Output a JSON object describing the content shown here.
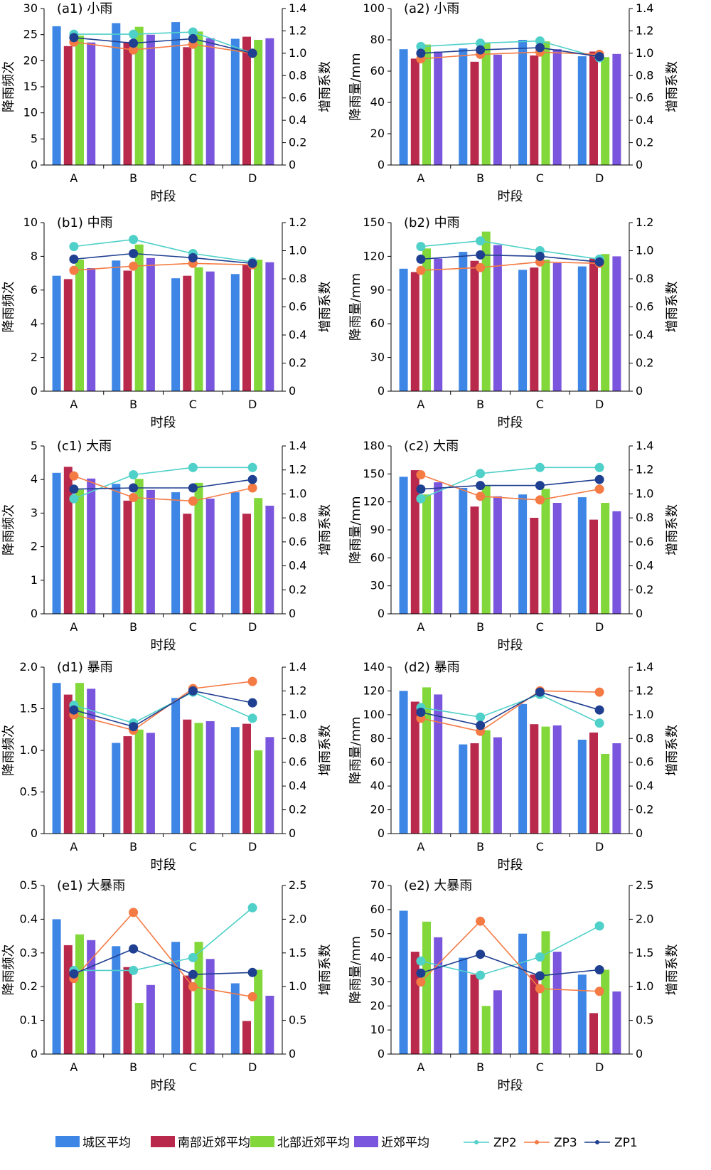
{
  "chart_data": [
    {
      "id": "a1",
      "type": "bar+line",
      "title": "(a1) 小雨",
      "xlabel": "时段",
      "ylabel": "降雨频次",
      "y2label": "增雨系数",
      "categories": [
        "A",
        "B",
        "C",
        "D"
      ],
      "ylim": [
        0,
        30
      ],
      "yticks": [
        "0",
        "5",
        "10",
        "15",
        "20",
        "25",
        "30"
      ],
      "y2lim": [
        0,
        1.4
      ],
      "y2ticks": [
        "0",
        "0.2",
        "0.4",
        "0.6",
        "0.8",
        "1.0",
        "1.2",
        "1.4"
      ],
      "series": [
        {
          "name": "城区平均",
          "values": [
            26.6,
            27.2,
            27.4,
            24.2
          ]
        },
        {
          "name": "南部近郊平均",
          "values": [
            22.8,
            23.6,
            22.6,
            24.6
          ]
        },
        {
          "name": "北部近郊平均",
          "values": [
            24.8,
            26.5,
            25.6,
            24.0
          ]
        },
        {
          "name": "近郊平均",
          "values": [
            23.5,
            25.0,
            24.3,
            24.3
          ]
        }
      ],
      "lines": [
        {
          "name": "ZP2",
          "values": [
            1.17,
            1.17,
            1.19,
            1.0
          ]
        },
        {
          "name": "ZP3",
          "values": [
            1.1,
            1.03,
            1.08,
            1.0
          ]
        },
        {
          "name": "ZP1",
          "values": [
            1.14,
            1.09,
            1.13,
            1.0
          ]
        }
      ]
    },
    {
      "id": "a2",
      "type": "bar+line",
      "title": "(a2) 小雨",
      "xlabel": "时段",
      "ylabel": "降雨量/mm",
      "y2label": "增雨系数",
      "categories": [
        "A",
        "B",
        "C",
        "D"
      ],
      "ylim": [
        0,
        100
      ],
      "yticks": [
        "0",
        "20",
        "40",
        "60",
        "80",
        "100"
      ],
      "y2lim": [
        0,
        1.4
      ],
      "y2ticks": [
        "0",
        "0.2",
        "0.4",
        "0.6",
        "0.8",
        "1.0",
        "1.2",
        "1.4"
      ],
      "series": [
        {
          "name": "城区平均",
          "values": [
            74,
            74.5,
            80,
            69.5
          ]
        },
        {
          "name": "南部近郊平均",
          "values": [
            68,
            66,
            70,
            72.5
          ]
        },
        {
          "name": "北部近郊平均",
          "values": [
            77,
            78,
            79,
            69
          ]
        },
        {
          "name": "近郊平均",
          "values": [
            72.5,
            70.5,
            74,
            71
          ]
        }
      ],
      "lines": [
        {
          "name": "ZP2",
          "values": [
            1.06,
            1.09,
            1.11,
            0.96
          ]
        },
        {
          "name": "ZP3",
          "values": [
            0.95,
            0.99,
            1.01,
            0.99
          ]
        },
        {
          "name": "ZP1",
          "values": [
            1.0,
            1.03,
            1.05,
            0.97
          ]
        }
      ]
    },
    {
      "id": "b1",
      "type": "bar+line",
      "title": "(b1) 中雨",
      "xlabel": "时段",
      "ylabel": "降雨频次",
      "y2label": "增雨系数",
      "categories": [
        "A",
        "B",
        "C",
        "D"
      ],
      "ylim": [
        0,
        10
      ],
      "yticks": [
        "0",
        "2",
        "4",
        "6",
        "8",
        "10"
      ],
      "y2lim": [
        0,
        1.2
      ],
      "y2ticks": [
        "0",
        "0.2",
        "0.4",
        "0.6",
        "0.8",
        "1.0",
        "1.2"
      ],
      "series": [
        {
          "name": "城区平均",
          "values": [
            6.85,
            7.75,
            6.7,
            6.95
          ]
        },
        {
          "name": "南部近郊平均",
          "values": [
            6.65,
            7.15,
            6.85,
            7.5
          ]
        },
        {
          "name": "北部近郊平均",
          "values": [
            7.8,
            8.7,
            7.35,
            7.8
          ]
        },
        {
          "name": "近郊平均",
          "values": [
            7.3,
            7.9,
            7.1,
            7.65
          ]
        }
      ],
      "lines": [
        {
          "name": "ZP2",
          "values": [
            1.03,
            1.08,
            0.98,
            0.92
          ]
        },
        {
          "name": "ZP3",
          "values": [
            0.86,
            0.89,
            0.91,
            0.9
          ]
        },
        {
          "name": "ZP1",
          "values": [
            0.94,
            0.98,
            0.95,
            0.91
          ]
        }
      ]
    },
    {
      "id": "b2",
      "type": "bar+line",
      "title": "(b2) 中雨",
      "xlabel": "时段",
      "ylabel": "降雨量/mm",
      "y2label": "增雨系数",
      "categories": [
        "A",
        "B",
        "C",
        "D"
      ],
      "ylim": [
        0,
        150
      ],
      "yticks": [
        "0",
        "30",
        "60",
        "90",
        "120",
        "150"
      ],
      "y2lim": [
        0,
        1.2
      ],
      "y2ticks": [
        "0",
        "0.2",
        "0.4",
        "0.6",
        "0.8",
        "1.0",
        "1.2"
      ],
      "series": [
        {
          "name": "城区平均",
          "values": [
            109,
            124,
            108,
            111
          ]
        },
        {
          "name": "南部近郊平均",
          "values": [
            106,
            116,
            110,
            118
          ]
        },
        {
          "name": "北部近郊平均",
          "values": [
            127,
            142,
            117,
            122
          ]
        },
        {
          "name": "近郊平均",
          "values": [
            118,
            130,
            114,
            120
          ]
        }
      ],
      "lines": [
        {
          "name": "ZP2",
          "values": [
            1.03,
            1.07,
            1.0,
            0.94
          ]
        },
        {
          "name": "ZP3",
          "values": [
            0.86,
            0.88,
            0.92,
            0.91
          ]
        },
        {
          "name": "ZP1",
          "values": [
            0.94,
            0.97,
            0.96,
            0.92
          ]
        }
      ]
    },
    {
      "id": "c1",
      "type": "bar+line",
      "title": "(c1) 大雨",
      "xlabel": "时段",
      "ylabel": "降雨频次",
      "y2label": "增雨系数",
      "categories": [
        "A",
        "B",
        "C",
        "D"
      ],
      "ylim": [
        0,
        5
      ],
      "yticks": [
        "0",
        "1",
        "2",
        "3",
        "4",
        "5"
      ],
      "y2lim": [
        0,
        1.4
      ],
      "y2ticks": [
        "0",
        "0.2",
        "0.4",
        "0.6",
        "0.8",
        "1.0",
        "1.2",
        "1.4"
      ],
      "series": [
        {
          "name": "城区平均",
          "values": [
            4.2,
            3.87,
            3.62,
            3.62
          ]
        },
        {
          "name": "南部近郊平均",
          "values": [
            4.38,
            3.37,
            2.98,
            2.98
          ]
        },
        {
          "name": "北部近郊平均",
          "values": [
            3.7,
            4.02,
            3.9,
            3.45
          ]
        },
        {
          "name": "近郊平均",
          "values": [
            4.03,
            3.69,
            3.43,
            3.22
          ]
        }
      ],
      "lines": [
        {
          "name": "ZP2",
          "values": [
            0.96,
            1.16,
            1.22,
            1.22
          ]
        },
        {
          "name": "ZP3",
          "values": [
            1.15,
            0.97,
            0.94,
            1.05
          ]
        },
        {
          "name": "ZP1",
          "values": [
            1.04,
            1.05,
            1.05,
            1.12
          ]
        }
      ]
    },
    {
      "id": "c2",
      "type": "bar+line",
      "title": "(c2) 大雨",
      "xlabel": "时段",
      "ylabel": "降雨量/mm",
      "y2label": "增雨系数",
      "categories": [
        "A",
        "B",
        "C",
        "D"
      ],
      "ylim": [
        0,
        180
      ],
      "yticks": [
        "0",
        "30",
        "60",
        "90",
        "120",
        "150",
        "180"
      ],
      "y2lim": [
        0,
        1.4
      ],
      "y2ticks": [
        "0",
        "0.2",
        "0.4",
        "0.6",
        "0.8",
        "1.0",
        "1.2",
        "1.4"
      ],
      "series": [
        {
          "name": "城区平均",
          "values": [
            147,
            135,
            128,
            125
          ]
        },
        {
          "name": "南部近郊平均",
          "values": [
            154,
            115,
            103,
            101
          ]
        },
        {
          "name": "北部近郊平均",
          "values": [
            128,
            137,
            134,
            119
          ]
        },
        {
          "name": "近郊平均",
          "values": [
            141,
            126,
            119,
            110
          ]
        }
      ],
      "lines": [
        {
          "name": "ZP2",
          "values": [
            0.96,
            1.17,
            1.22,
            1.22
          ]
        },
        {
          "name": "ZP3",
          "values": [
            1.16,
            0.98,
            0.95,
            1.04
          ]
        },
        {
          "name": "ZP1",
          "values": [
            1.04,
            1.07,
            1.07,
            1.12
          ]
        }
      ]
    },
    {
      "id": "d1",
      "type": "bar+line",
      "title": "(d1) 暴雨",
      "xlabel": "时段",
      "ylabel": "降雨频次",
      "y2label": "增雨系数",
      "categories": [
        "A",
        "B",
        "C",
        "D"
      ],
      "ylim": [
        0,
        2.0
      ],
      "yticks": [
        "0",
        "0.5",
        "1.0",
        "1.5",
        "2.0"
      ],
      "y2lim": [
        0,
        1.4
      ],
      "y2ticks": [
        "0",
        "0.2",
        "0.4",
        "0.6",
        "0.8",
        "1.0",
        "1.2",
        "1.4"
      ],
      "series": [
        {
          "name": "城区平均",
          "values": [
            1.81,
            1.09,
            1.63,
            1.28
          ]
        },
        {
          "name": "南部近郊平均",
          "values": [
            1.67,
            1.17,
            1.37,
            1.32
          ]
        },
        {
          "name": "北部近郊平均",
          "values": [
            1.81,
            1.25,
            1.33,
            1.0
          ]
        },
        {
          "name": "近郊平均",
          "values": [
            1.74,
            1.21,
            1.35,
            1.16
          ]
        }
      ],
      "lines": [
        {
          "name": "ZP2",
          "values": [
            1.08,
            0.93,
            1.19,
            0.97
          ]
        },
        {
          "name": "ZP3",
          "values": [
            1.0,
            0.87,
            1.22,
            1.28
          ]
        },
        {
          "name": "ZP1",
          "values": [
            1.04,
            0.9,
            1.2,
            1.1
          ]
        }
      ]
    },
    {
      "id": "d2",
      "type": "bar+line",
      "title": "(d2) 暴雨",
      "xlabel": "时段",
      "ylabel": "降雨量/mm",
      "y2label": "增雨系数",
      "categories": [
        "A",
        "B",
        "C",
        "D"
      ],
      "ylim": [
        0,
        140
      ],
      "yticks": [
        "0",
        "20",
        "40",
        "60",
        "80",
        "100",
        "120",
        "140"
      ],
      "y2lim": [
        0,
        1.4
      ],
      "y2ticks": [
        "0",
        "0.2",
        "0.4",
        "0.6",
        "0.8",
        "1.0",
        "1.2",
        "1.4"
      ],
      "series": [
        {
          "name": "城区平均",
          "values": [
            120,
            75,
            109,
            79
          ]
        },
        {
          "name": "南部近郊平均",
          "values": [
            111,
            76,
            92,
            85
          ]
        },
        {
          "name": "北部近郊平均",
          "values": [
            123,
            87,
            90,
            67
          ]
        },
        {
          "name": "近郊平均",
          "values": [
            117,
            81,
            91,
            76
          ]
        }
      ],
      "lines": [
        {
          "name": "ZP2",
          "values": [
            1.06,
            0.98,
            1.17,
            0.93
          ]
        },
        {
          "name": "ZP3",
          "values": [
            0.97,
            0.86,
            1.2,
            1.19
          ]
        },
        {
          "name": "ZP1",
          "values": [
            1.02,
            0.91,
            1.19,
            1.04
          ]
        }
      ]
    },
    {
      "id": "e1",
      "type": "bar+line",
      "title": "(e1) 大暴雨",
      "xlabel": "时段",
      "ylabel": "降雨频次",
      "y2label": "增雨系数",
      "categories": [
        "A",
        "B",
        "C",
        "D"
      ],
      "ylim": [
        0,
        0.5
      ],
      "yticks": [
        "0",
        "0.1",
        "0.2",
        "0.3",
        "0.4",
        "0.5"
      ],
      "y2lim": [
        0,
        2.5
      ],
      "y2ticks": [
        "0",
        "0.5",
        "1.0",
        "1.5",
        "2.0",
        "2.5"
      ],
      "series": [
        {
          "name": "城区平均",
          "values": [
            0.4,
            0.32,
            0.333,
            0.21
          ]
        },
        {
          "name": "南部近郊平均",
          "values": [
            0.323,
            0.258,
            0.233,
            0.098
          ]
        },
        {
          "name": "北部近郊平均",
          "values": [
            0.355,
            0.152,
            0.333,
            0.25
          ]
        },
        {
          "name": "近郊平均",
          "values": [
            0.338,
            0.205,
            0.282,
            0.173
          ]
        }
      ],
      "lines": [
        {
          "name": "ZP2",
          "values": [
            1.24,
            1.24,
            1.43,
            2.17
          ]
        },
        {
          "name": "ZP3",
          "values": [
            1.12,
            2.1,
            1.0,
            0.85
          ]
        },
        {
          "name": "ZP1",
          "values": [
            1.19,
            1.56,
            1.18,
            1.21
          ]
        }
      ]
    },
    {
      "id": "e2",
      "type": "bar+line",
      "title": "(e2) 大暴雨",
      "xlabel": "时段",
      "ylabel": "降雨量/mm",
      "y2label": "增雨系数",
      "categories": [
        "A",
        "B",
        "C",
        "D"
      ],
      "ylim": [
        0,
        70
      ],
      "yticks": [
        "0",
        "10",
        "20",
        "30",
        "40",
        "50",
        "60",
        "70"
      ],
      "y2lim": [
        0,
        2.5
      ],
      "y2ticks": [
        "0",
        "0.5",
        "1.0",
        "1.5",
        "2.0",
        "2.5"
      ],
      "series": [
        {
          "name": "城区平均",
          "values": [
            59.5,
            40,
            50,
            33
          ]
        },
        {
          "name": "南部近郊平均",
          "values": [
            42.5,
            33,
            33,
            17
          ]
        },
        {
          "name": "北部近郊平均",
          "values": [
            55,
            20,
            51,
            35
          ]
        },
        {
          "name": "近郊平均",
          "values": [
            48.5,
            26.5,
            42.5,
            26
          ]
        }
      ],
      "lines": [
        {
          "name": "ZP2",
          "values": [
            1.38,
            1.17,
            1.44,
            1.9
          ]
        },
        {
          "name": "ZP3",
          "values": [
            1.07,
            1.97,
            0.97,
            0.93
          ]
        },
        {
          "name": "ZP1",
          "values": [
            1.2,
            1.48,
            1.16,
            1.25
          ]
        }
      ]
    }
  ],
  "legend": {
    "bars": [
      {
        "label": "城区平均",
        "color": "#3d86e6"
      },
      {
        "label": "南部近郊平均",
        "color": "#b8294c"
      },
      {
        "label": "北部近郊平均",
        "color": "#82d83a"
      },
      {
        "label": "近郊平均",
        "color": "#7a55dd"
      }
    ],
    "lines": [
      {
        "label": "ZP2",
        "color": "#4fd0c9"
      },
      {
        "label": "ZP3",
        "color": "#f57b45"
      },
      {
        "label": "ZP1",
        "color": "#1f3f91"
      }
    ],
    "placement": "bottom"
  }
}
